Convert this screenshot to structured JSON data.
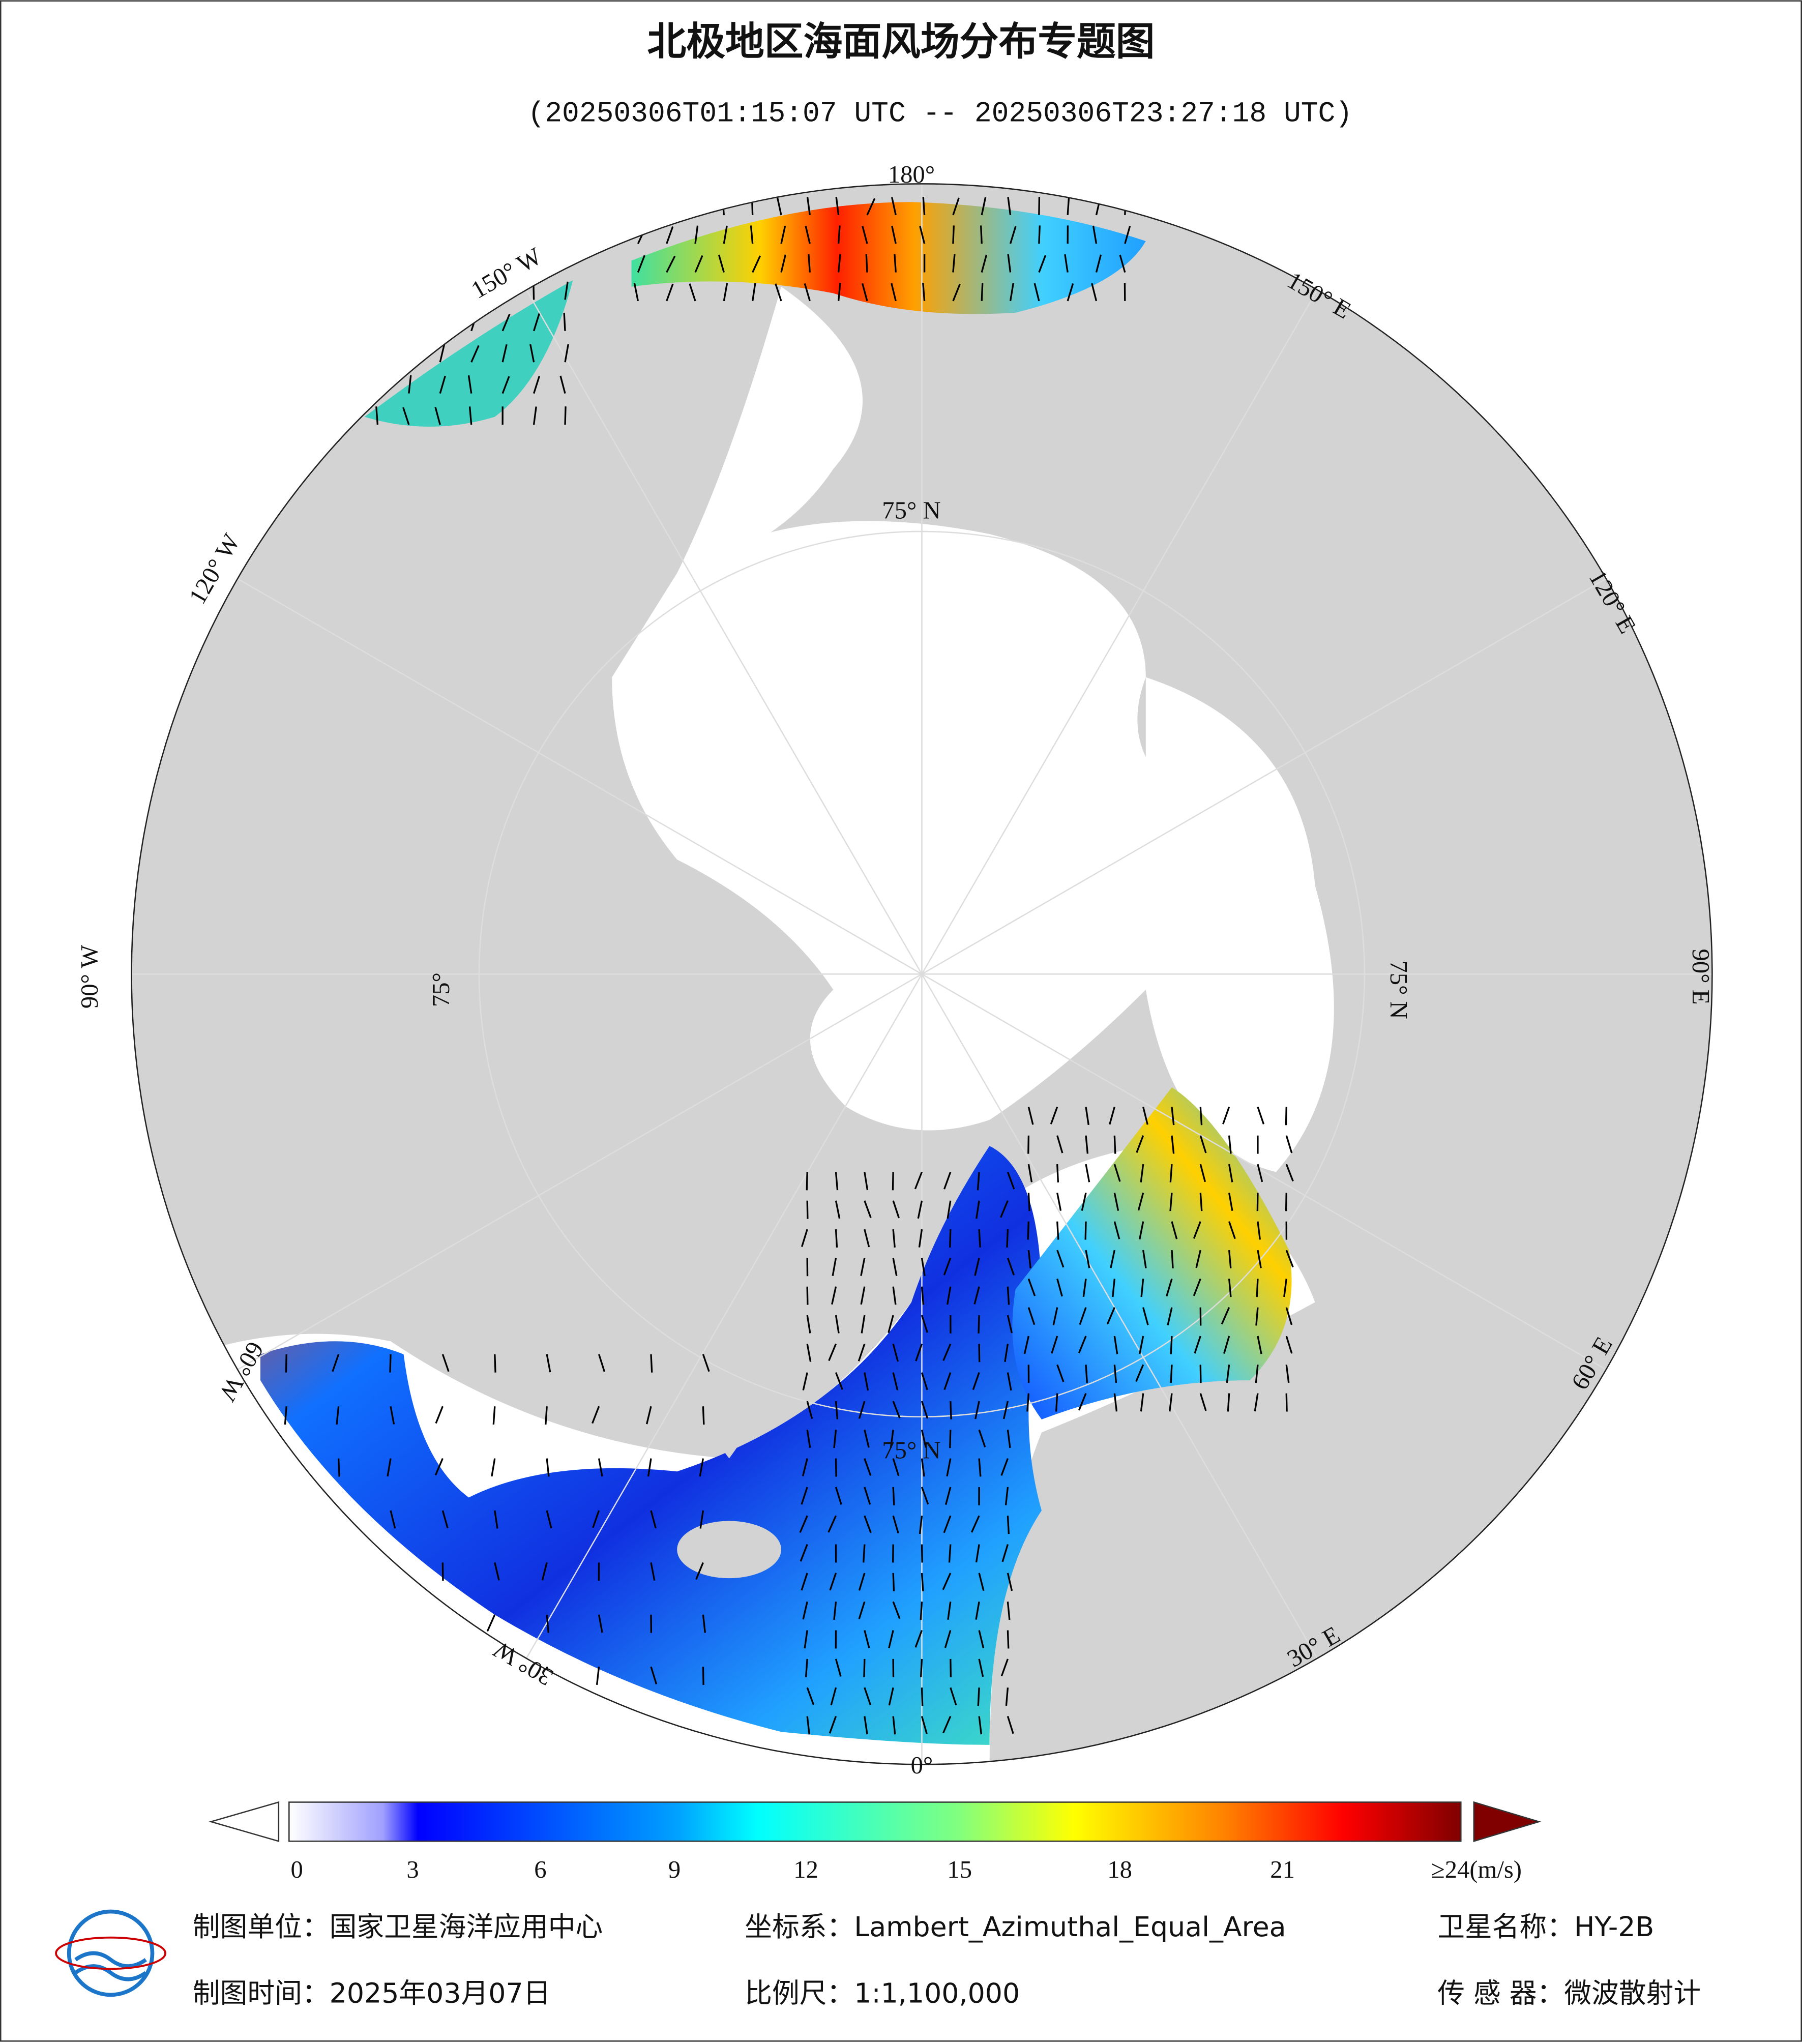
{
  "title": "北极地区海面风场分布专题图",
  "subtitle": "(20250306T01:15:07 UTC -- 20250306T23:27:18 UTC)",
  "longitude_labels": [
    "180°",
    "150° E",
    "120° E",
    "90° E",
    "60° E",
    "30° E",
    "0°",
    "30° W",
    "60° W",
    "90° W",
    "120° W",
    "150° W"
  ],
  "latitude_labels": [
    "75° N",
    "75° N",
    "75°",
    "75° N"
  ],
  "colorbar": {
    "ticks": [
      0,
      3,
      6,
      9,
      12,
      15,
      18,
      21
    ],
    "max_label": "≥24(m/s)"
  },
  "footer": {
    "producer": "制图单位：国家卫星海洋应用中心",
    "projection": "坐标系：Lambert_Azimuthal_Equal_Area",
    "satellite": "卫星名称：HY-2B",
    "date": "制图时间：2025年03月07日",
    "scale": "比例尺：1:1,100,000",
    "sensor": "传 感 器：微波散射计"
  }
}
